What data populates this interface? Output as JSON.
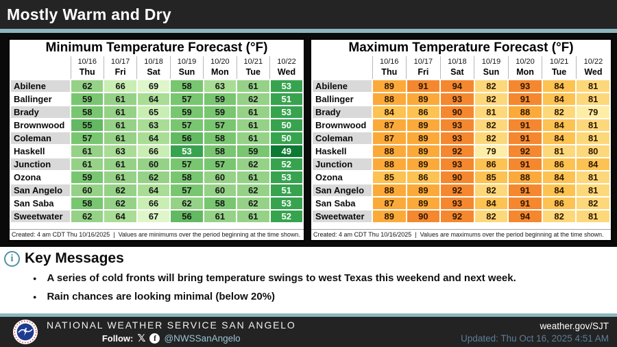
{
  "title": "Mostly Warm and Dry",
  "chart_data": [
    {
      "type": "table",
      "title": "Minimum Temperature Forecast (°F)",
      "column_dates": [
        "10/16",
        "10/17",
        "10/18",
        "10/19",
        "10/20",
        "10/21",
        "10/22"
      ],
      "column_days": [
        "Thu",
        "Fri",
        "Sat",
        "Sun",
        "Mon",
        "Tue",
        "Wed"
      ],
      "cities": [
        "Abilene",
        "Ballinger",
        "Brady",
        "Brownwood",
        "Coleman",
        "Haskell",
        "Junction",
        "Ozona",
        "San Angelo",
        "San Saba",
        "Sweetwater"
      ],
      "values": [
        [
          62,
          66,
          69,
          58,
          63,
          61,
          53
        ],
        [
          59,
          61,
          64,
          57,
          59,
          62,
          51
        ],
        [
          58,
          61,
          65,
          59,
          59,
          61,
          53
        ],
        [
          55,
          61,
          63,
          57,
          57,
          61,
          50
        ],
        [
          57,
          61,
          64,
          56,
          58,
          61,
          50
        ],
        [
          61,
          63,
          66,
          53,
          58,
          59,
          49
        ],
        [
          61,
          61,
          60,
          57,
          57,
          62,
          52
        ],
        [
          59,
          61,
          62,
          58,
          60,
          61,
          53
        ],
        [
          60,
          62,
          64,
          57,
          60,
          62,
          51
        ],
        [
          58,
          62,
          66,
          62,
          58,
          62,
          53
        ],
        [
          62,
          64,
          67,
          56,
          61,
          61,
          52
        ]
      ],
      "footnote": "Created: 4 am CDT Thu 10/16/2025  |  Values are minimums over the period beginning at the time shown.",
      "scale": "min"
    },
    {
      "type": "table",
      "title": "Maximum Temperature Forecast (°F)",
      "column_dates": [
        "10/16",
        "10/17",
        "10/18",
        "10/19",
        "10/20",
        "10/21",
        "10/22"
      ],
      "column_days": [
        "Thu",
        "Fri",
        "Sat",
        "Sun",
        "Mon",
        "Tue",
        "Wed"
      ],
      "cities": [
        "Abilene",
        "Ballinger",
        "Brady",
        "Brownwood",
        "Coleman",
        "Haskell",
        "Junction",
        "Ozona",
        "San Angelo",
        "San Saba",
        "Sweetwater"
      ],
      "values": [
        [
          89,
          91,
          94,
          82,
          93,
          84,
          81
        ],
        [
          88,
          89,
          93,
          82,
          91,
          84,
          81
        ],
        [
          84,
          86,
          90,
          81,
          88,
          82,
          79
        ],
        [
          87,
          89,
          93,
          82,
          91,
          84,
          81
        ],
        [
          87,
          89,
          93,
          82,
          91,
          84,
          81
        ],
        [
          88,
          89,
          92,
          79,
          92,
          81,
          80
        ],
        [
          88,
          89,
          93,
          86,
          91,
          86,
          84
        ],
        [
          85,
          86,
          90,
          85,
          88,
          84,
          81
        ],
        [
          88,
          89,
          92,
          82,
          91,
          84,
          81
        ],
        [
          87,
          89,
          93,
          84,
          91,
          86,
          82
        ],
        [
          89,
          90,
          92,
          82,
          94,
          82,
          81
        ]
      ],
      "footnote": "Created: 4 am CDT Thu 10/16/2025  |  Values are maximums over the period beginning at the time shown.",
      "scale": "max"
    }
  ],
  "color_scales": {
    "min": [
      {
        "max": 49,
        "bg": "#0d7a33",
        "fg": "#ffffff"
      },
      {
        "max": 53,
        "bg": "#37a34f",
        "fg": "#ffffff"
      },
      {
        "max": 56,
        "bg": "#63b961",
        "fg": "#161616"
      },
      {
        "max": 59,
        "bg": "#79c671",
        "fg": "#161616"
      },
      {
        "max": 62,
        "bg": "#95d287",
        "fg": "#161616"
      },
      {
        "max": 64,
        "bg": "#a9dd95",
        "fg": "#161616"
      },
      {
        "max": 66,
        "bg": "#c9eeb3",
        "fg": "#161616"
      },
      {
        "max": 999,
        "bg": "#def6c9",
        "fg": "#161616"
      }
    ],
    "max": [
      {
        "max": 79,
        "bg": "#feeda6",
        "fg": "#2b1703"
      },
      {
        "max": 83,
        "bg": "#fdd87a",
        "fg": "#2b1703"
      },
      {
        "max": 86,
        "bg": "#fcc252",
        "fg": "#2b1703"
      },
      {
        "max": 89,
        "bg": "#fbaa3a",
        "fg": "#2b1703"
      },
      {
        "max": 999,
        "bg": "#f5882f",
        "fg": "#2b1703"
      }
    ]
  },
  "key_messages": {
    "heading": "Key Messages",
    "info_icon": "i",
    "bullets": [
      "A series of cold fronts will bring temperature swings to west Texas this weekend and next week.",
      "Rain chances are looking minimal (below 20%)"
    ]
  },
  "footer": {
    "org": "NATIONAL WEATHER SERVICE SAN ANGELO",
    "follow_label": "Follow:",
    "x_icon": "𝕏",
    "fb_icon": "f",
    "handle": "@NWSSanAngelo",
    "site": "weather.gov/SJT",
    "updated": "Updated: Thu Oct 16, 2025 4:51 AM"
  },
  "colors": {
    "titlebar_bg": "#242424",
    "accent_teal": "#8cb6bd",
    "content_bg": "#0a0a0a",
    "panel_border": "#000000",
    "label_alt_row": "#d9d9d9",
    "footer_bg": "#232323",
    "handle_text": "#9cc3d5",
    "updated_text": "#5f7d98",
    "info_icon_teal": "#4e93a3"
  }
}
